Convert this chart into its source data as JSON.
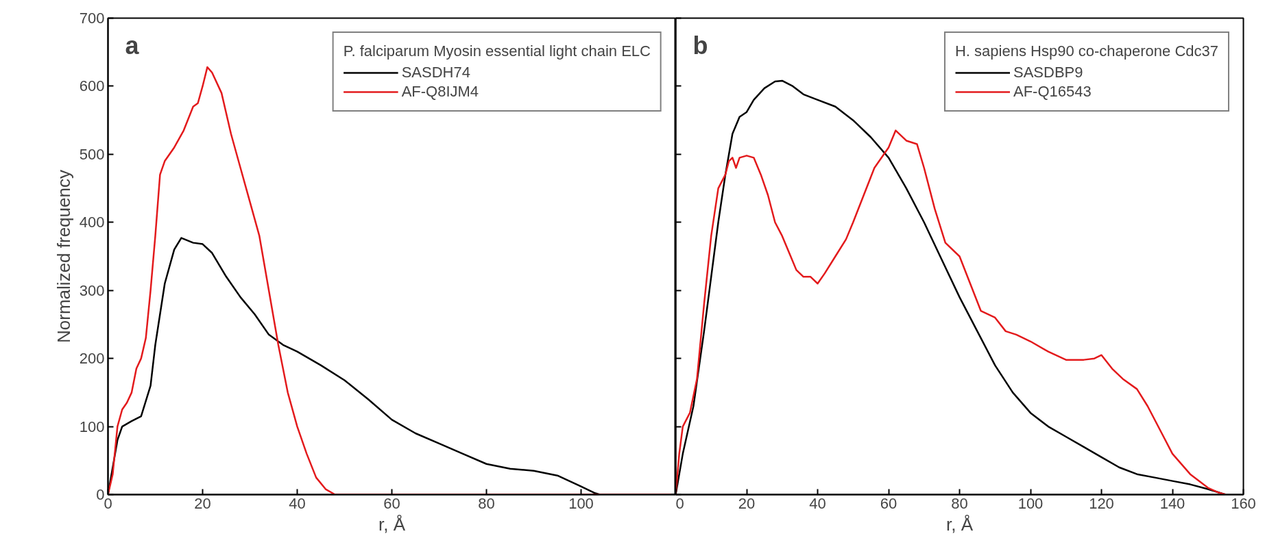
{
  "chart_data": [
    {
      "type": "line",
      "title": "a",
      "legend_title": "P. falciparum Myosin essential light chain ELC",
      "xlabel": "r, Å",
      "ylabel": "Normalized frequency",
      "xlim": [
        0,
        120
      ],
      "ylim": [
        0,
        700
      ],
      "xticks": [
        0,
        20,
        40,
        60,
        80,
        100
      ],
      "yticks": [
        0,
        100,
        200,
        300,
        400,
        500,
        600,
        700
      ],
      "legend": "top right",
      "grid": false,
      "series": [
        {
          "name": "SASDH74",
          "color": "#000000",
          "x": [
            0,
            1,
            2,
            3,
            5,
            7,
            9,
            10,
            12,
            14,
            15.5,
            18,
            20,
            22,
            25,
            28,
            31,
            34,
            37,
            40,
            45,
            50,
            55,
            60,
            65,
            70,
            75,
            80,
            85,
            90,
            95,
            100,
            103,
            104,
            120
          ],
          "values": [
            0,
            40,
            80,
            100,
            108,
            115,
            160,
            220,
            310,
            360,
            377,
            370,
            368,
            355,
            320,
            290,
            265,
            235,
            220,
            210,
            190,
            168,
            140,
            110,
            90,
            75,
            60,
            45,
            38,
            35,
            28,
            12,
            2,
            0,
            0
          ]
        },
        {
          "name": "AF-Q8IJM4",
          "color": "#e31a1c",
          "x": [
            0,
            1,
            2,
            3,
            4,
            5,
            6,
            7,
            8,
            9,
            10,
            11,
            12,
            14,
            16,
            18,
            19,
            20,
            21,
            22,
            24,
            26,
            28,
            30,
            32,
            34,
            36,
            38,
            40,
            42,
            44,
            46,
            48,
            50,
            119
          ],
          "values": [
            0,
            30,
            100,
            125,
            135,
            150,
            185,
            200,
            230,
            300,
            380,
            470,
            490,
            510,
            535,
            570,
            575,
            600,
            628,
            620,
            590,
            530,
            480,
            430,
            380,
            300,
            220,
            150,
            100,
            60,
            25,
            8,
            0,
            0,
            0
          ]
        }
      ]
    },
    {
      "type": "line",
      "title": "b",
      "legend_title": "H. sapiens Hsp90 co-chaperone Cdc37",
      "xlabel": "r, Å",
      "xlim": [
        0,
        160
      ],
      "ylim": [
        0,
        700
      ],
      "xticks": [
        0,
        20,
        40,
        60,
        80,
        100,
        120,
        140,
        160
      ],
      "yticks": [
        0,
        100,
        200,
        300,
        400,
        500,
        600,
        700
      ],
      "tick_labels": "x",
      "legend": "top right",
      "grid": false,
      "series": [
        {
          "name": "SASDBP9",
          "color": "#000000",
          "x": [
            0,
            2,
            5,
            8,
            10,
            12,
            14,
            16,
            18,
            20,
            22,
            25,
            28,
            30,
            33,
            36,
            40,
            45,
            50,
            55,
            60,
            65,
            70,
            75,
            80,
            85,
            90,
            95,
            100,
            105,
            110,
            115,
            120,
            125,
            130,
            135,
            140,
            145,
            150,
            155
          ],
          "values": [
            0,
            60,
            130,
            240,
            320,
            400,
            470,
            530,
            555,
            562,
            580,
            597,
            607,
            608,
            600,
            588,
            580,
            570,
            550,
            525,
            495,
            450,
            400,
            345,
            290,
            240,
            190,
            150,
            120,
            100,
            85,
            70,
            55,
            40,
            30,
            25,
            20,
            15,
            8,
            0
          ]
        },
        {
          "name": "AF-Q16543",
          "color": "#e31a1c",
          "x": [
            0,
            1,
            2,
            4,
            6,
            8,
            10,
            12,
            14,
            15,
            16,
            17,
            18,
            20,
            22,
            24,
            26,
            28,
            30,
            32,
            34,
            36,
            38,
            40,
            42,
            45,
            48,
            50,
            53,
            56,
            60,
            62,
            65,
            68,
            70,
            73,
            76,
            80,
            83,
            86,
            90,
            93,
            96,
            100,
            105,
            110,
            115,
            118,
            120,
            123,
            126,
            130,
            133,
            137,
            140,
            145,
            150,
            153,
            155
          ],
          "values": [
            0,
            60,
            100,
            120,
            170,
            280,
            380,
            450,
            470,
            490,
            495,
            480,
            495,
            498,
            495,
            470,
            440,
            400,
            380,
            355,
            330,
            320,
            320,
            310,
            325,
            350,
            375,
            400,
            440,
            480,
            510,
            535,
            520,
            515,
            480,
            420,
            370,
            350,
            310,
            270,
            260,
            240,
            235,
            225,
            210,
            198,
            198,
            200,
            205,
            185,
            170,
            155,
            130,
            90,
            60,
            30,
            10,
            3,
            0
          ]
        }
      ]
    }
  ]
}
